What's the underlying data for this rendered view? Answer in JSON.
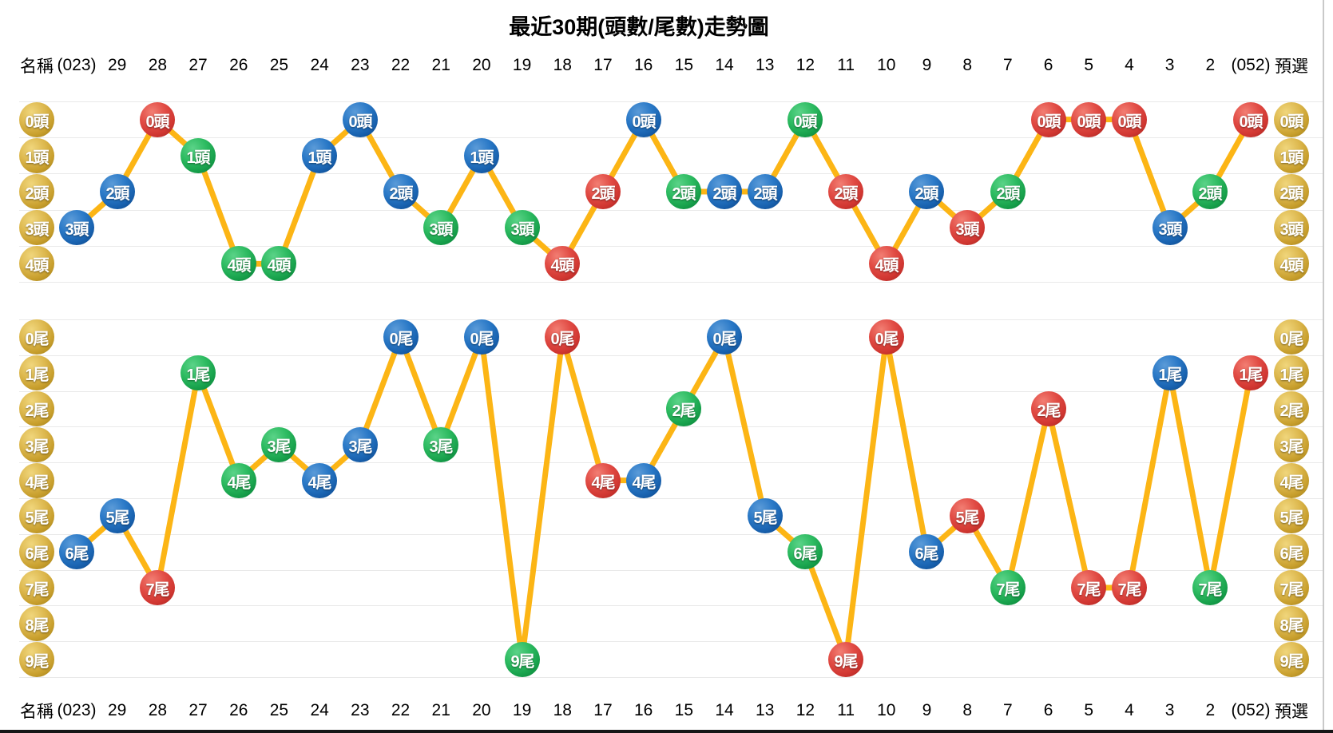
{
  "title": "最近30期(頭數/尾數)走勢圖",
  "columns": {
    "name_header": "名稱",
    "preselect_header": "預選",
    "periods": [
      "(023)",
      "29",
      "28",
      "27",
      "26",
      "25",
      "24",
      "23",
      "22",
      "21",
      "20",
      "19",
      "18",
      "17",
      "16",
      "15",
      "14",
      "13",
      "12",
      "11",
      "10",
      "9",
      "8",
      "7",
      "6",
      "5",
      "4",
      "3",
      "2",
      "(052)"
    ]
  },
  "colors": {
    "red": "#d6403a",
    "blue": "#1b67b3",
    "green": "#23aa54",
    "gold": "#c9a02c",
    "line": "#fcb515",
    "grid": "#e9e9e9"
  },
  "chart_data": [
    {
      "type": "line",
      "name": "head-chart",
      "suffix": "頭",
      "row_labels": [
        "0頭",
        "1頭",
        "2頭",
        "3頭",
        "4頭"
      ],
      "categories": [
        "(023)",
        "29",
        "28",
        "27",
        "26",
        "25",
        "24",
        "23",
        "22",
        "21",
        "20",
        "19",
        "18",
        "17",
        "16",
        "15",
        "14",
        "13",
        "12",
        "11",
        "10",
        "9",
        "8",
        "7",
        "6",
        "5",
        "4",
        "3",
        "2",
        "(052)"
      ],
      "values": [
        3,
        2,
        0,
        1,
        4,
        4,
        1,
        0,
        2,
        3,
        1,
        3,
        4,
        2,
        0,
        2,
        2,
        2,
        0,
        2,
        4,
        2,
        3,
        2,
        0,
        0,
        0,
        3,
        2,
        0
      ],
      "labels": [
        "3頭",
        "2頭",
        "0頭",
        "1頭",
        "4頭",
        "4頭",
        "1頭",
        "0頭",
        "2頭",
        "3頭",
        "1頭",
        "3頭",
        "4頭",
        "2頭",
        "0頭",
        "2頭",
        "2頭",
        "2頭",
        "0頭",
        "2頭",
        "4頭",
        "2頭",
        "3頭",
        "2頭",
        "0頭",
        "0頭",
        "0頭",
        "3頭",
        "2頭",
        "0頭"
      ],
      "point_colors": [
        "blue",
        "blue",
        "red",
        "green",
        "green",
        "green",
        "blue",
        "blue",
        "blue",
        "green",
        "blue",
        "green",
        "red",
        "red",
        "blue",
        "green",
        "blue",
        "blue",
        "green",
        "red",
        "red",
        "blue",
        "red",
        "green",
        "red",
        "red",
        "red",
        "blue",
        "green",
        "red"
      ],
      "ylim": [
        0,
        4
      ],
      "grid": true,
      "legend": false
    },
    {
      "type": "line",
      "name": "tail-chart",
      "suffix": "尾",
      "row_labels": [
        "0尾",
        "1尾",
        "2尾",
        "3尾",
        "4尾",
        "5尾",
        "6尾",
        "7尾",
        "8尾",
        "9尾"
      ],
      "categories": [
        "(023)",
        "29",
        "28",
        "27",
        "26",
        "25",
        "24",
        "23",
        "22",
        "21",
        "20",
        "19",
        "18",
        "17",
        "16",
        "15",
        "14",
        "13",
        "12",
        "11",
        "10",
        "9",
        "8",
        "7",
        "6",
        "5",
        "4",
        "3",
        "2",
        "(052)"
      ],
      "values": [
        6,
        5,
        7,
        1,
        4,
        3,
        4,
        3,
        0,
        3,
        0,
        9,
        0,
        4,
        4,
        2,
        0,
        5,
        6,
        9,
        0,
        6,
        5,
        7,
        2,
        7,
        7,
        1,
        7,
        1
      ],
      "labels": [
        "6尾",
        "5尾",
        "7尾",
        "1尾",
        "4尾",
        "3尾",
        "4尾",
        "3尾",
        "0尾",
        "3尾",
        "0尾",
        "9尾",
        "0尾",
        "4尾",
        "4尾",
        "2尾",
        "0尾",
        "5尾",
        "6尾",
        "9尾",
        "0尾",
        "6尾",
        "5尾",
        "7尾",
        "2尾",
        "7尾",
        "7尾",
        "1尾",
        "7尾",
        "1尾"
      ],
      "point_colors": [
        "blue",
        "blue",
        "red",
        "green",
        "green",
        "green",
        "blue",
        "blue",
        "blue",
        "green",
        "blue",
        "green",
        "red",
        "red",
        "blue",
        "green",
        "blue",
        "blue",
        "green",
        "red",
        "red",
        "blue",
        "red",
        "green",
        "red",
        "red",
        "red",
        "blue",
        "green",
        "red"
      ],
      "ylim": [
        0,
        9
      ],
      "grid": true,
      "legend": false
    }
  ]
}
